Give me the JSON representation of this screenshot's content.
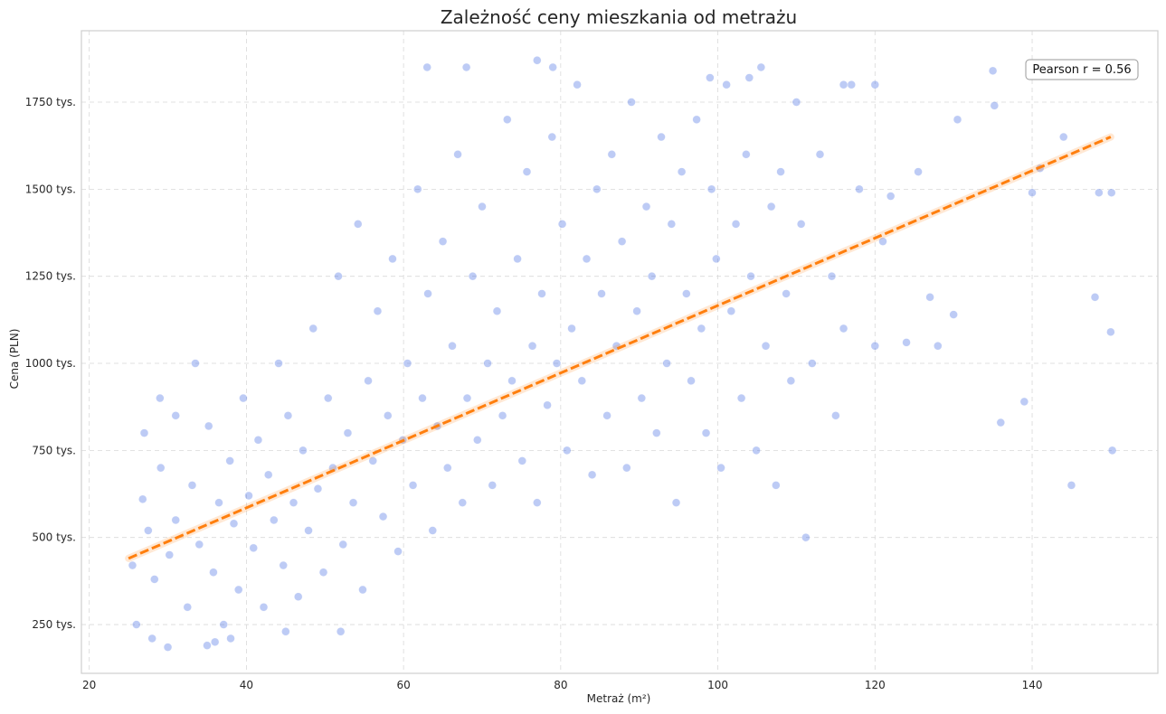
{
  "chart_data": {
    "type": "scatter",
    "title": "Zależność ceny mieszkania od metrażu",
    "xlabel": "Metraż (m²)",
    "ylabel": "Cena (PLN)",
    "xlim": [
      19,
      156
    ],
    "ylim": [
      110000,
      1955000
    ],
    "xticks": [
      {
        "value": 20,
        "label": "20"
      },
      {
        "value": 40,
        "label": "40"
      },
      {
        "value": 60,
        "label": "60"
      },
      {
        "value": 80,
        "label": "80"
      },
      {
        "value": 100,
        "label": "100"
      },
      {
        "value": 120,
        "label": "120"
      },
      {
        "value": 140,
        "label": "140"
      }
    ],
    "yticks": [
      {
        "value": 250000,
        "label": "250 tys."
      },
      {
        "value": 500000,
        "label": "500 tys."
      },
      {
        "value": 750000,
        "label": "750 tys."
      },
      {
        "value": 1000000,
        "label": "1000 tys."
      },
      {
        "value": 1250000,
        "label": "1250 tys."
      },
      {
        "value": 1500000,
        "label": "1500 tys."
      },
      {
        "value": 1750000,
        "label": "1750 tys."
      }
    ],
    "grid": true,
    "scatter_color": "#4169e1",
    "trend_color": "#ff7f0e",
    "trendline": {
      "x": [
        25,
        150
      ],
      "y": [
        440000,
        1650000
      ]
    },
    "annotation": {
      "text": "Pearson r = 0.56",
      "position": "top-right"
    },
    "points": [
      [
        25.5,
        420000
      ],
      [
        26.8,
        610000
      ],
      [
        27.5,
        520000
      ],
      [
        28.3,
        380000
      ],
      [
        29.1,
        700000
      ],
      [
        30.2,
        450000
      ],
      [
        31.0,
        550000
      ],
      [
        32.5,
        300000
      ],
      [
        33.1,
        650000
      ],
      [
        34.0,
        480000
      ],
      [
        35.2,
        820000
      ],
      [
        35.8,
        400000
      ],
      [
        36.5,
        600000
      ],
      [
        37.1,
        250000
      ],
      [
        37.9,
        720000
      ],
      [
        38.4,
        540000
      ],
      [
        39.0,
        350000
      ],
      [
        39.6,
        900000
      ],
      [
        40.3,
        620000
      ],
      [
        40.9,
        470000
      ],
      [
        41.5,
        780000
      ],
      [
        42.2,
        300000
      ],
      [
        42.8,
        680000
      ],
      [
        43.5,
        550000
      ],
      [
        44.1,
        1000000
      ],
      [
        44.7,
        420000
      ],
      [
        45.3,
        850000
      ],
      [
        46.0,
        600000
      ],
      [
        46.6,
        330000
      ],
      [
        47.2,
        750000
      ],
      [
        47.9,
        520000
      ],
      [
        48.5,
        1100000
      ],
      [
        49.1,
        640000
      ],
      [
        49.8,
        400000
      ],
      [
        50.4,
        900000
      ],
      [
        51.0,
        700000
      ],
      [
        51.7,
        1250000
      ],
      [
        52.3,
        480000
      ],
      [
        52.9,
        800000
      ],
      [
        53.6,
        600000
      ],
      [
        54.2,
        1400000
      ],
      [
        54.8,
        350000
      ],
      [
        55.5,
        950000
      ],
      [
        56.1,
        720000
      ],
      [
        56.7,
        1150000
      ],
      [
        57.4,
        560000
      ],
      [
        58.0,
        850000
      ],
      [
        58.6,
        1300000
      ],
      [
        59.3,
        460000
      ],
      [
        59.9,
        780000
      ],
      [
        60.5,
        1000000
      ],
      [
        61.2,
        650000
      ],
      [
        61.8,
        1500000
      ],
      [
        62.4,
        900000
      ],
      [
        63.1,
        1200000
      ],
      [
        63.7,
        520000
      ],
      [
        64.3,
        820000
      ],
      [
        65.0,
        1350000
      ],
      [
        65.6,
        700000
      ],
      [
        66.2,
        1050000
      ],
      [
        66.9,
        1600000
      ],
      [
        67.5,
        600000
      ],
      [
        68.1,
        900000
      ],
      [
        68.8,
        1250000
      ],
      [
        69.4,
        780000
      ],
      [
        70.0,
        1450000
      ],
      [
        70.7,
        1000000
      ],
      [
        71.3,
        650000
      ],
      [
        71.9,
        1150000
      ],
      [
        72.6,
        850000
      ],
      [
        73.2,
        1700000
      ],
      [
        73.8,
        950000
      ],
      [
        74.5,
        1300000
      ],
      [
        75.1,
        720000
      ],
      [
        75.7,
        1550000
      ],
      [
        76.4,
        1050000
      ],
      [
        77.0,
        600000
      ],
      [
        77.6,
        1200000
      ],
      [
        78.3,
        880000
      ],
      [
        78.9,
        1650000
      ],
      [
        79.5,
        1000000
      ],
      [
        80.2,
        1400000
      ],
      [
        80.8,
        750000
      ],
      [
        81.4,
        1100000
      ],
      [
        82.1,
        1800000
      ],
      [
        82.7,
        950000
      ],
      [
        83.3,
        1300000
      ],
      [
        84.0,
        680000
      ],
      [
        84.6,
        1500000
      ],
      [
        85.2,
        1200000
      ],
      [
        85.9,
        850000
      ],
      [
        86.5,
        1600000
      ],
      [
        87.1,
        1050000
      ],
      [
        87.8,
        1350000
      ],
      [
        88.4,
        700000
      ],
      [
        89.0,
        1750000
      ],
      [
        89.7,
        1150000
      ],
      [
        90.3,
        900000
      ],
      [
        90.9,
        1450000
      ],
      [
        91.6,
        1250000
      ],
      [
        92.2,
        800000
      ],
      [
        92.8,
        1650000
      ],
      [
        93.5,
        1000000
      ],
      [
        94.1,
        1400000
      ],
      [
        94.7,
        600000
      ],
      [
        95.4,
        1550000
      ],
      [
        96.0,
        1200000
      ],
      [
        96.6,
        950000
      ],
      [
        97.3,
        1700000
      ],
      [
        97.9,
        1100000
      ],
      [
        98.5,
        800000
      ],
      [
        99.2,
        1500000
      ],
      [
        99.8,
        1300000
      ],
      [
        100.4,
        700000
      ],
      [
        101.1,
        1800000
      ],
      [
        101.7,
        1150000
      ],
      [
        102.3,
        1400000
      ],
      [
        103.0,
        900000
      ],
      [
        103.6,
        1600000
      ],
      [
        104.2,
        1250000
      ],
      [
        104.9,
        750000
      ],
      [
        105.5,
        1850000
      ],
      [
        106.1,
        1050000
      ],
      [
        106.8,
        1450000
      ],
      [
        107.4,
        650000
      ],
      [
        108.0,
        1550000
      ],
      [
        108.7,
        1200000
      ],
      [
        109.3,
        950000
      ],
      [
        110.0,
        1750000
      ],
      [
        110.6,
        1400000
      ],
      [
        111.2,
        500000
      ],
      [
        112.0,
        1000000
      ],
      [
        113.0,
        1600000
      ],
      [
        114.5,
        1250000
      ],
      [
        115.0,
        850000
      ],
      [
        116.0,
        1100000
      ],
      [
        117.0,
        1800000
      ],
      [
        118.0,
        1500000
      ],
      [
        120.0,
        1050000
      ],
      [
        121.0,
        1350000
      ],
      [
        122.0,
        1480000
      ],
      [
        124.0,
        1060000
      ],
      [
        125.5,
        1550000
      ],
      [
        127.0,
        1190000
      ],
      [
        128.0,
        1050000
      ],
      [
        130.0,
        1140000
      ],
      [
        130.5,
        1700000
      ],
      [
        135.0,
        1840000
      ],
      [
        135.2,
        1740000
      ],
      [
        136.0,
        830000
      ],
      [
        139.0,
        890000
      ],
      [
        140.0,
        1490000
      ],
      [
        141.0,
        1560000
      ],
      [
        144.0,
        1650000
      ],
      [
        145.0,
        650000
      ],
      [
        148.0,
        1190000
      ],
      [
        148.5,
        1490000
      ],
      [
        150.0,
        1090000
      ],
      [
        150.2,
        750000
      ],
      [
        150.1,
        1490000
      ],
      [
        63.0,
        1850000
      ],
      [
        68.0,
        1850000
      ],
      [
        77.0,
        1870000
      ],
      [
        79.0,
        1850000
      ],
      [
        99.0,
        1820000
      ],
      [
        104.0,
        1820000
      ],
      [
        120.0,
        1800000
      ],
      [
        116.0,
        1800000
      ],
      [
        26.0,
        250000
      ],
      [
        28.0,
        210000
      ],
      [
        30.0,
        185000
      ],
      [
        36.0,
        200000
      ],
      [
        38.0,
        210000
      ],
      [
        45.0,
        230000
      ],
      [
        52.0,
        230000
      ],
      [
        35.0,
        190000
      ],
      [
        27.0,
        800000
      ],
      [
        29.0,
        900000
      ],
      [
        31.0,
        850000
      ],
      [
        33.5,
        1000000
      ]
    ]
  }
}
